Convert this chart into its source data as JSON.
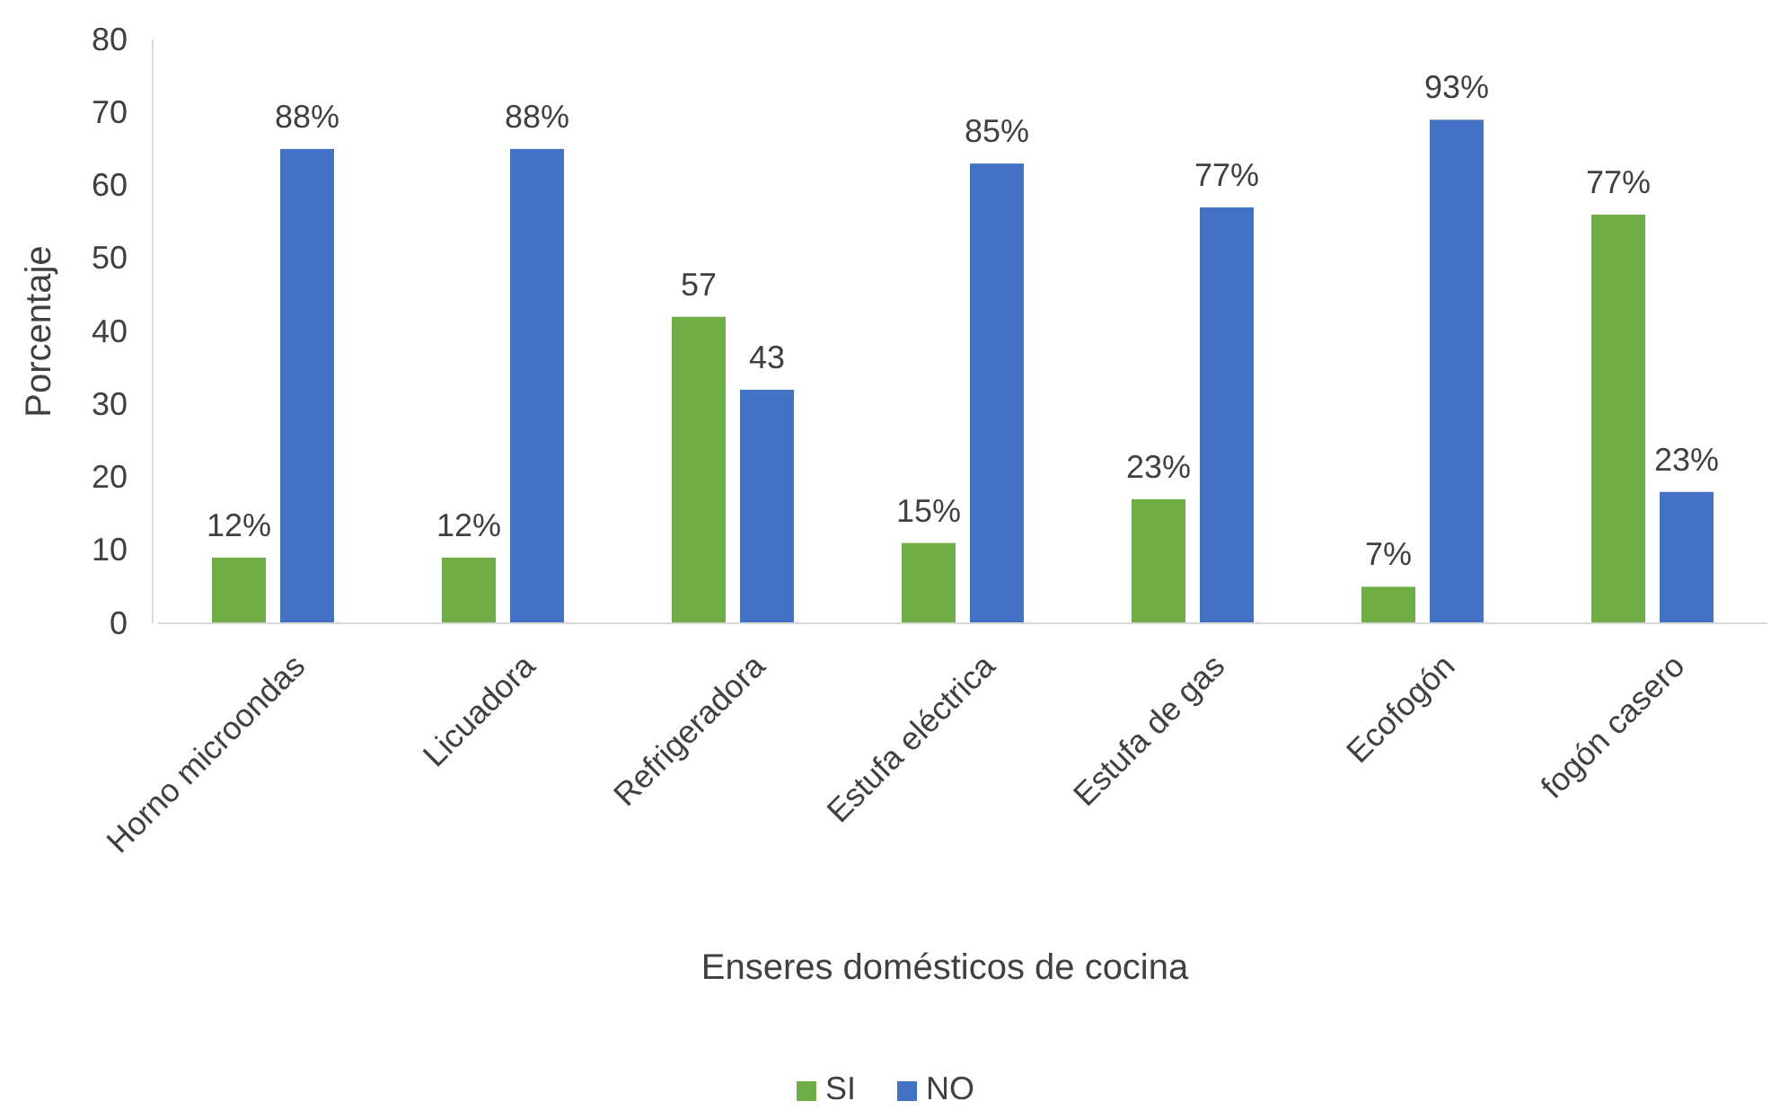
{
  "chart_data": {
    "type": "bar",
    "xlabel": "Enseres domésticos de cocina",
    "ylabel": "Porcentaje",
    "categories": [
      "Horno microondas",
      "Licuadora",
      "Refrigeradora",
      "Estufa  eléctrica",
      "Estufa de gas",
      "Ecofogón",
      "fogón casero"
    ],
    "series": [
      {
        "name": "SI",
        "color": "#70ad47",
        "values": [
          9,
          9,
          42,
          11,
          17,
          5,
          56
        ]
      },
      {
        "name": "NO",
        "color": "#4472c4",
        "values": [
          65,
          65,
          32,
          63,
          57,
          69,
          18
        ]
      }
    ],
    "annotations": [
      "12%",
      "88%",
      "12%",
      "88%",
      "57",
      "43",
      "15%",
      "85%",
      "23%",
      "77%",
      "7%",
      "93%",
      "77%",
      "23%"
    ],
    "ylim": [
      0,
      80
    ],
    "yticks": [
      0,
      10,
      20,
      30,
      40,
      50,
      60,
      70,
      80
    ],
    "grid": false,
    "legend": "bottom"
  }
}
